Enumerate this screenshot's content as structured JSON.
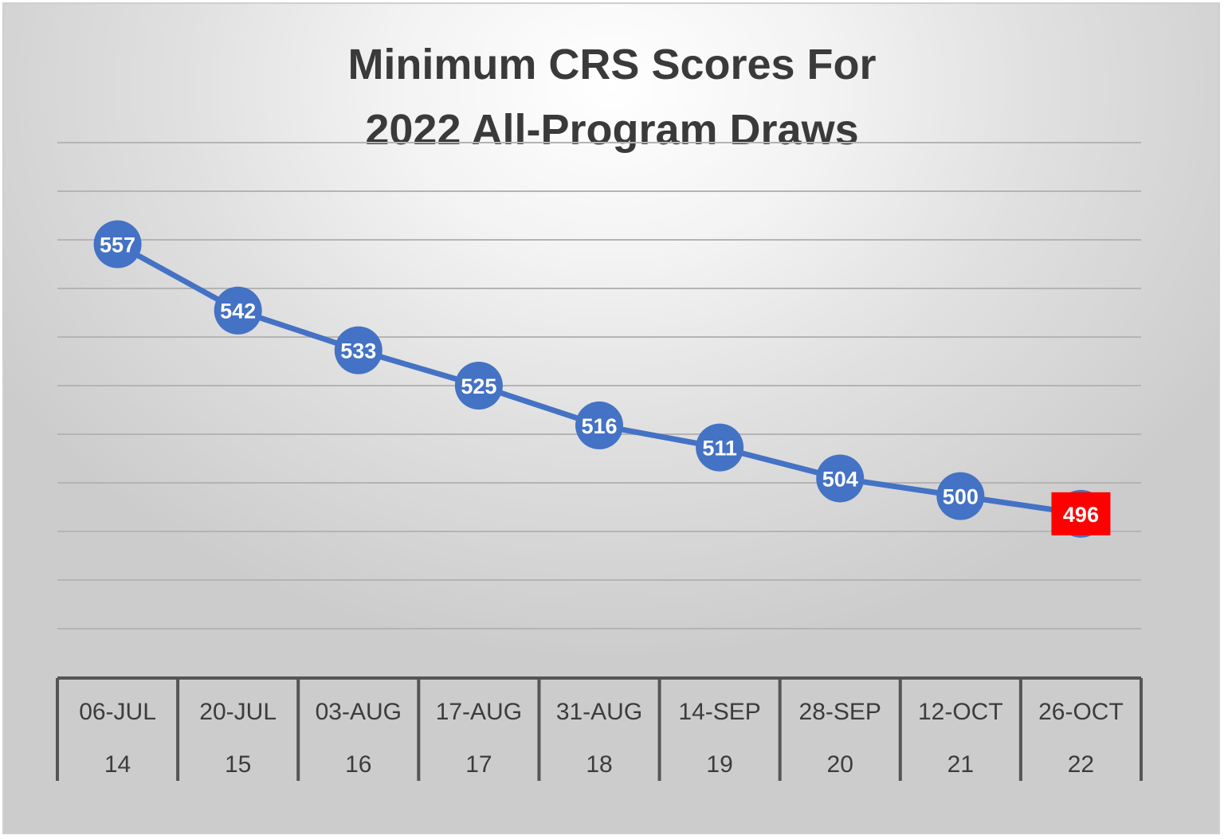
{
  "chart_data": {
    "type": "line",
    "title": [
      "Minimum CRS Scores For",
      "2022 All-Program Draws"
    ],
    "xlabel": "",
    "ylabel": "",
    "categories": [
      "06-JUL",
      "20-JUL",
      "03-AUG",
      "17-AUG",
      "31-AUG",
      "14-SEP",
      "28-SEP",
      "12-OCT",
      "26-OCT"
    ],
    "draw_numbers": [
      "14",
      "15",
      "16",
      "17",
      "18",
      "19",
      "20",
      "21",
      "22"
    ],
    "series": [
      {
        "values": [
          557,
          542,
          533,
          525,
          516,
          511,
          504,
          500,
          496
        ]
      }
    ],
    "highlight_index": 8,
    "ylim": [
      470,
      580
    ],
    "grid": true,
    "legend": "none",
    "colors": {
      "series": "#4472c4",
      "highlight": "#ff0000",
      "label_text": "#ffffff"
    }
  }
}
